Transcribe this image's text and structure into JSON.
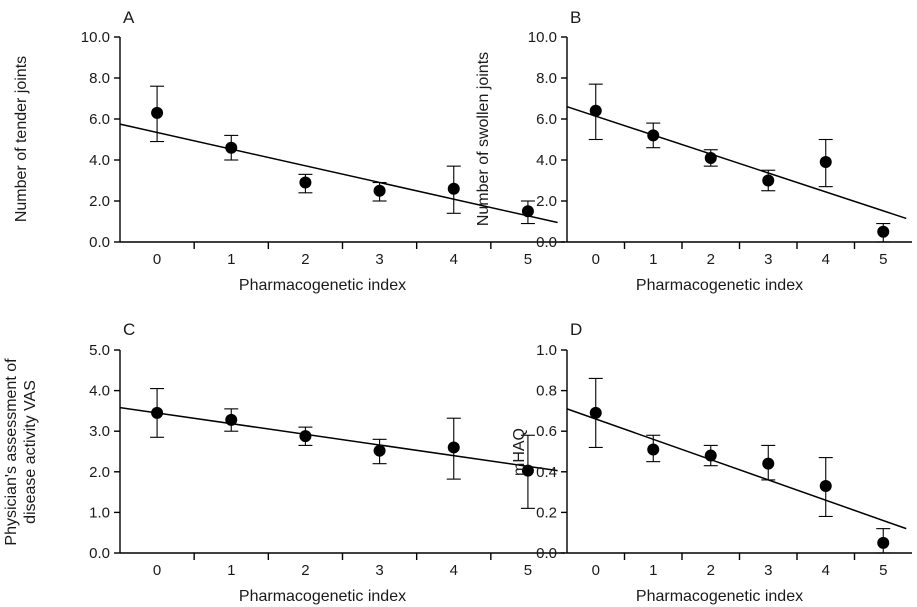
{
  "chart_data": [
    {
      "type": "scatter",
      "panel_label": "A",
      "xlabel": "Pharmacogenetic index",
      "ylabel": "Number of tender joints",
      "x_ticks": [
        "0",
        "1",
        "2",
        "3",
        "4",
        "5"
      ],
      "y_ticks": [
        "0.0",
        "2.0",
        "4.0",
        "6.0",
        "8.0",
        "10.0"
      ],
      "xlim": [
        -0.5,
        5.5
      ],
      "ylim": [
        0,
        10
      ],
      "x": [
        0,
        1,
        2,
        3,
        4,
        5
      ],
      "values": [
        6.3,
        4.6,
        2.9,
        2.5,
        2.6,
        1.5
      ],
      "err_low": [
        4.9,
        4.0,
        2.4,
        2.0,
        1.4,
        0.9
      ],
      "err_high": [
        7.6,
        5.2,
        3.3,
        2.9,
        3.7,
        2.0
      ],
      "trendline": {
        "x": [
          -0.5,
          5.4
        ],
        "y": [
          5.75,
          0.95
        ]
      },
      "grid": false
    },
    {
      "type": "scatter",
      "panel_label": "B",
      "xlabel": "Pharmacogenetic index",
      "ylabel": "Number of swollen joints",
      "x_ticks": [
        "0",
        "1",
        "2",
        "3",
        "4",
        "5"
      ],
      "y_ticks": [
        "0.0",
        "2.0",
        "4.0",
        "6.0",
        "8.0",
        "10.0"
      ],
      "xlim": [
        -0.5,
        5.5
      ],
      "ylim": [
        0,
        10
      ],
      "x": [
        0,
        1,
        2,
        3,
        4,
        5
      ],
      "values": [
        6.4,
        5.2,
        4.1,
        3.0,
        3.9,
        0.5
      ],
      "err_low": [
        5.0,
        4.6,
        3.7,
        2.5,
        2.7,
        0.0
      ],
      "err_high": [
        7.7,
        5.8,
        4.5,
        3.5,
        5.0,
        0.9
      ],
      "trendline": {
        "x": [
          -0.5,
          5.4
        ],
        "y": [
          6.6,
          1.15
        ]
      },
      "grid": false
    },
    {
      "type": "scatter",
      "panel_label": "C",
      "xlabel": "Pharmacogenetic index",
      "ylabel": "Physician's assessment of disease activity VAS",
      "ylabel_lines": [
        "Physician's assessment of",
        "disease activity VAS"
      ],
      "x_ticks": [
        "0",
        "1",
        "2",
        "3",
        "4",
        "5"
      ],
      "y_ticks": [
        "0.0",
        "1.0",
        "2.0",
        "3.0",
        "4.0",
        "5.0"
      ],
      "xlim": [
        -0.5,
        5.5
      ],
      "ylim": [
        0,
        5
      ],
      "x": [
        0,
        1,
        2,
        3,
        4,
        5
      ],
      "values": [
        3.45,
        3.28,
        2.88,
        2.52,
        2.6,
        2.03
      ],
      "err_low": [
        2.85,
        3.0,
        2.65,
        2.2,
        1.82,
        1.1
      ],
      "err_high": [
        4.05,
        3.55,
        3.1,
        2.8,
        3.32,
        2.9
      ],
      "trendline": {
        "x": [
          -0.5,
          5.4
        ],
        "y": [
          3.58,
          2.03
        ]
      },
      "grid": false
    },
    {
      "type": "scatter",
      "panel_label": "D",
      "xlabel": "Pharmacogenetic index",
      "ylabel": "mHAQ",
      "x_ticks": [
        "0",
        "1",
        "2",
        "3",
        "4",
        "5"
      ],
      "y_ticks": [
        "0.0",
        "0.2",
        "0.4",
        "0.6",
        "0.8",
        "1.0"
      ],
      "xlim": [
        -0.5,
        5.5
      ],
      "ylim": [
        0,
        1
      ],
      "x": [
        0,
        1,
        2,
        3,
        4,
        5
      ],
      "values": [
        0.69,
        0.51,
        0.48,
        0.44,
        0.33,
        0.05
      ],
      "err_low": [
        0.52,
        0.45,
        0.43,
        0.36,
        0.18,
        0.0
      ],
      "err_high": [
        0.86,
        0.58,
        0.53,
        0.53,
        0.47,
        0.12
      ],
      "trendline": {
        "x": [
          -0.5,
          5.4
        ],
        "y": [
          0.71,
          0.12
        ]
      },
      "grid": false
    }
  ]
}
